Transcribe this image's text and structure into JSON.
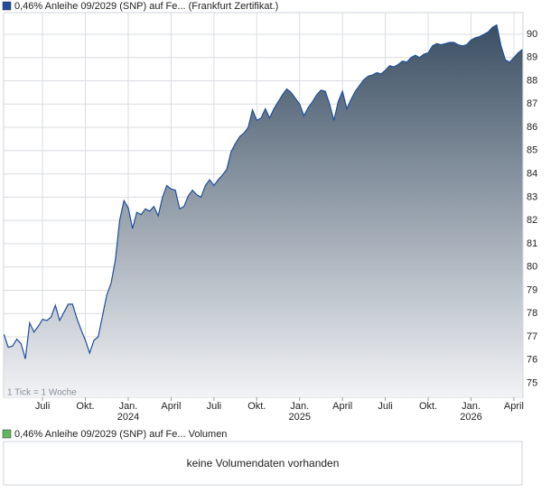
{
  "chart_data": {
    "type": "area",
    "legend": "0,46% Anleihe 09/2029 (SNP) auf Fe... (Frankfurt Zertifikat.)",
    "note": "1 Tick = 1 Woche",
    "color": "#1f4e9c",
    "fill_top": "#3b4f63",
    "fill_bottom": "#f2f3f6",
    "grid": true,
    "x": [
      2023.275,
      2023.3,
      2023.325,
      2023.35,
      2023.375,
      2023.4,
      2023.425,
      2023.45,
      2023.475,
      2023.5,
      2023.525,
      2023.55,
      2023.575,
      2023.6,
      2023.625,
      2023.65,
      2023.675,
      2023.7,
      2023.725,
      2023.75,
      2023.775,
      2023.8,
      2023.825,
      2023.85,
      2023.875,
      2023.9,
      2023.925,
      2023.95,
      2023.975,
      2024.0,
      2024.025,
      2024.05,
      2024.075,
      2024.1,
      2024.125,
      2024.15,
      2024.175,
      2024.2,
      2024.225,
      2024.25,
      2024.275,
      2024.3,
      2024.325,
      2024.35,
      2024.375,
      2024.4,
      2024.425,
      2024.45,
      2024.475,
      2024.5,
      2024.525,
      2024.55,
      2024.575,
      2024.6,
      2024.625,
      2024.65,
      2024.675,
      2024.7,
      2024.725,
      2024.75,
      2024.775,
      2024.8,
      2024.825,
      2024.85,
      2024.875,
      2024.9,
      2024.925,
      2024.95,
      2024.975,
      2025.0,
      2025.025,
      2025.05,
      2025.075,
      2025.1,
      2025.125,
      2025.15,
      2025.175,
      2025.2,
      2025.225,
      2025.25,
      2025.275,
      2025.3,
      2025.325,
      2025.35,
      2025.375,
      2025.4,
      2025.425,
      2025.45,
      2025.475,
      2025.5,
      2025.525,
      2025.55,
      2025.575,
      2025.6,
      2025.625,
      2025.65,
      2025.675,
      2025.7,
      2025.725,
      2025.75,
      2025.775,
      2025.8,
      2025.825,
      2025.85,
      2025.875,
      2025.9,
      2025.925,
      2025.95,
      2025.975,
      2026.0,
      2026.025,
      2026.05,
      2026.075,
      2026.1,
      2026.125,
      2026.15,
      2026.175,
      2026.2,
      2026.225,
      2026.25,
      2026.275,
      2026.3
    ],
    "values": [
      77.1,
      76.55,
      76.6,
      76.9,
      76.7,
      76.05,
      77.6,
      77.2,
      77.45,
      77.75,
      77.7,
      77.85,
      78.35,
      77.7,
      78.05,
      78.4,
      78.4,
      77.8,
      77.3,
      76.85,
      76.3,
      76.85,
      77.0,
      77.9,
      78.8,
      79.3,
      80.3,
      82.0,
      82.85,
      82.55,
      81.65,
      82.35,
      82.25,
      82.5,
      82.4,
      82.6,
      82.2,
      83.0,
      83.5,
      83.35,
      83.3,
      82.5,
      82.6,
      83.05,
      83.3,
      83.1,
      83.0,
      83.5,
      83.75,
      83.5,
      83.75,
      83.95,
      84.2,
      84.95,
      85.3,
      85.6,
      85.75,
      86.0,
      86.75,
      86.3,
      86.4,
      86.8,
      86.4,
      86.8,
      87.1,
      87.4,
      87.65,
      87.5,
      87.25,
      87.0,
      86.5,
      86.85,
      87.1,
      87.4,
      87.6,
      87.55,
      87.0,
      86.3,
      87.1,
      87.55,
      86.8,
      87.2,
      87.55,
      87.8,
      88.05,
      88.2,
      88.25,
      88.35,
      88.3,
      88.45,
      88.65,
      88.6,
      88.7,
      88.85,
      88.8,
      89.0,
      89.1,
      89.0,
      89.15,
      89.2,
      89.5,
      89.6,
      89.55,
      89.6,
      89.65,
      89.65,
      89.55,
      89.5,
      89.55,
      89.75,
      89.85,
      89.9,
      90.0,
      90.1,
      90.3,
      90.4,
      89.5,
      88.9,
      88.8,
      89.0,
      89.2,
      89.35
    ],
    "xlim": [
      2023.273,
      2026.303
    ],
    "xticks": [
      {
        "value": 2023.5,
        "label": "Juli"
      },
      {
        "value": 2023.75,
        "label": "Okt."
      },
      {
        "value": 2024.0,
        "label": "Jan.",
        "sublabel": "2024"
      },
      {
        "value": 2024.25,
        "label": "April"
      },
      {
        "value": 2024.5,
        "label": "Juli"
      },
      {
        "value": 2024.75,
        "label": "Okt."
      },
      {
        "value": 2025.0,
        "label": "Jan.",
        "sublabel": "2025"
      },
      {
        "value": 2025.25,
        "label": "April"
      },
      {
        "value": 2025.5,
        "label": "Juli"
      },
      {
        "value": 2025.75,
        "label": "Okt."
      },
      {
        "value": 2026.0,
        "label": "Jan.",
        "sublabel": "2026"
      },
      {
        "value": 2026.25,
        "label": "April"
      }
    ],
    "ylim": [
      74.4,
      90.93
    ],
    "yticks": [
      75,
      76,
      77,
      78,
      79,
      80,
      81,
      82,
      83,
      84,
      85,
      86,
      87,
      88,
      89,
      90
    ]
  },
  "volume": {
    "legend": "0,46% Anleihe 09/2029 (SNP) auf Fe... Volumen",
    "color": "#5fb85f",
    "message": "keine Volumendaten vorhanden"
  }
}
